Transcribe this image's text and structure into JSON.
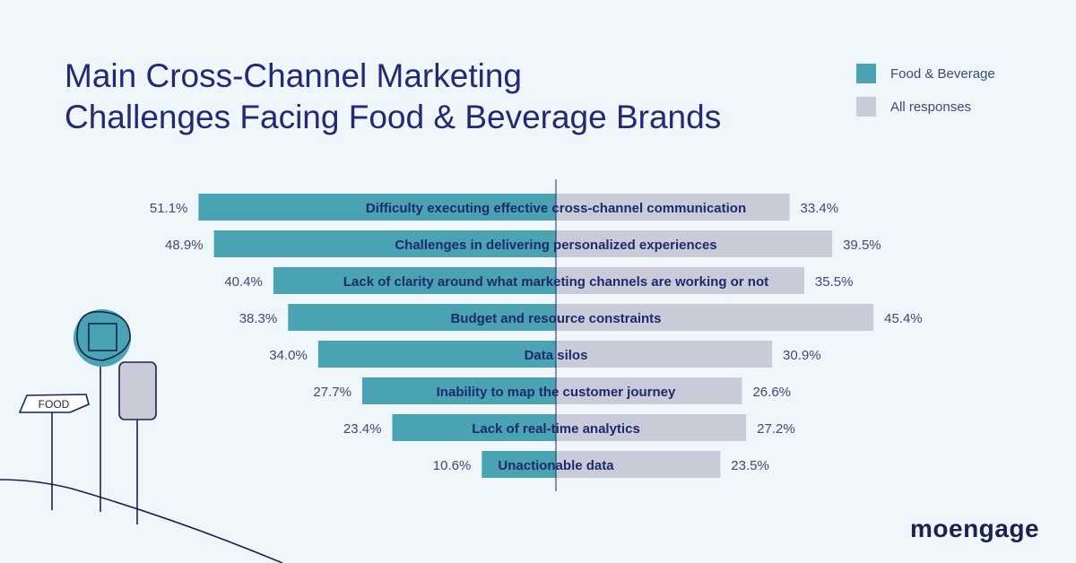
{
  "chart_data": {
    "type": "bar",
    "orientation": "horizontal-diverging",
    "title": [
      "Main Cross-Channel Marketing",
      "Challenges Facing Food & Beverage Brands"
    ],
    "categories": [
      "Difficulty executing effective cross-channel communication",
      "Challenges in delivering personalized experiences",
      "Lack of clarity around what marketing channels are working or not",
      "Budget and resource constraints",
      "Data silos",
      "Inability to map the customer journey",
      "Lack of real-time analytics",
      "Unactionable data"
    ],
    "series": [
      {
        "name": "Food & Beverage",
        "color": "#4aa3b3",
        "side": "left",
        "values": [
          51.1,
          48.9,
          40.4,
          38.3,
          34.0,
          27.7,
          23.4,
          10.6
        ],
        "labels": [
          "51.1%",
          "48.9%",
          "40.4%",
          "38.3%",
          "34.0%",
          "27.7%",
          "23.4%",
          "10.6%"
        ]
      },
      {
        "name": "All responses",
        "color": "#c9cbd9",
        "side": "right",
        "values": [
          33.4,
          39.5,
          35.5,
          45.4,
          30.9,
          26.6,
          27.2,
          23.5
        ],
        "labels": [
          "33.4%",
          "39.5%",
          "35.5%",
          "45.4%",
          "30.9%",
          "26.6%",
          "27.2%",
          "23.5%"
        ]
      }
    ],
    "unit": "%",
    "legend_position": "top-right"
  },
  "illustration": {
    "sign_text": "FOOD"
  },
  "brand": {
    "logo": "moengage"
  }
}
